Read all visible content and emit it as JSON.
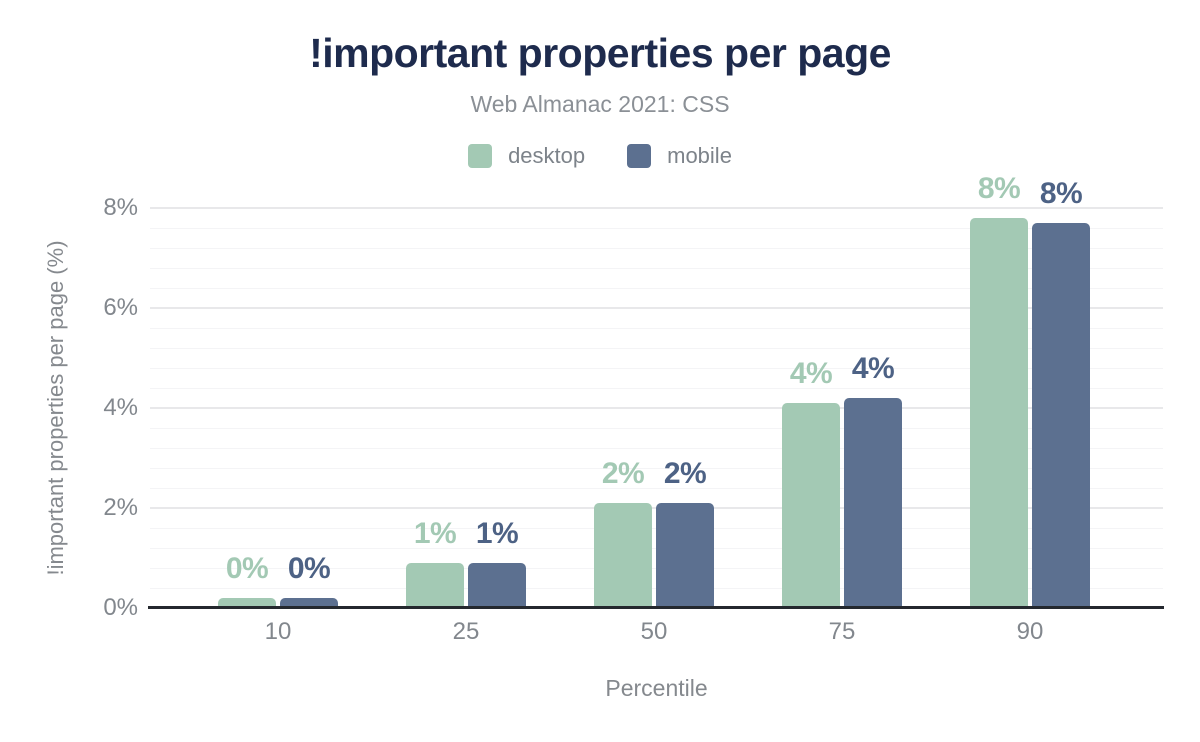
{
  "chart_data": {
    "type": "bar",
    "title": "!important properties per page",
    "subtitle": "Web Almanac 2021: CSS",
    "xlabel": "Percentile",
    "ylabel": "!important properties per page (%)",
    "categories": [
      "10",
      "25",
      "50",
      "75",
      "90"
    ],
    "series": [
      {
        "name": "desktop",
        "color": "#a3c9b4",
        "label_color": "#a3c9b4",
        "values": [
          0.2,
          0.9,
          2.1,
          4.1,
          7.8
        ],
        "value_labels": [
          "0%",
          "1%",
          "2%",
          "4%",
          "8%"
        ]
      },
      {
        "name": "mobile",
        "color": "#5c7090",
        "label_color": "#4d6285",
        "values": [
          0.2,
          0.9,
          2.1,
          4.2,
          7.7
        ],
        "value_labels": [
          "0%",
          "1%",
          "2%",
          "4%",
          "8%"
        ]
      }
    ],
    "y_axis": {
      "ticks": [
        0,
        2,
        4,
        6,
        8
      ],
      "tick_labels": [
        "0%",
        "2%",
        "4%",
        "6%",
        "8%"
      ],
      "min": 0,
      "max": 8.3,
      "minor_step": 0.4
    },
    "legend_position": "top-center",
    "grid": "on",
    "colors": {
      "title": "#1e2b4d",
      "muted_text": "#85898e",
      "axis_line": "#24282e",
      "grid_major": "#e8e8ea",
      "grid_minor": "#f4f4f6",
      "background": "#ffffff"
    }
  }
}
